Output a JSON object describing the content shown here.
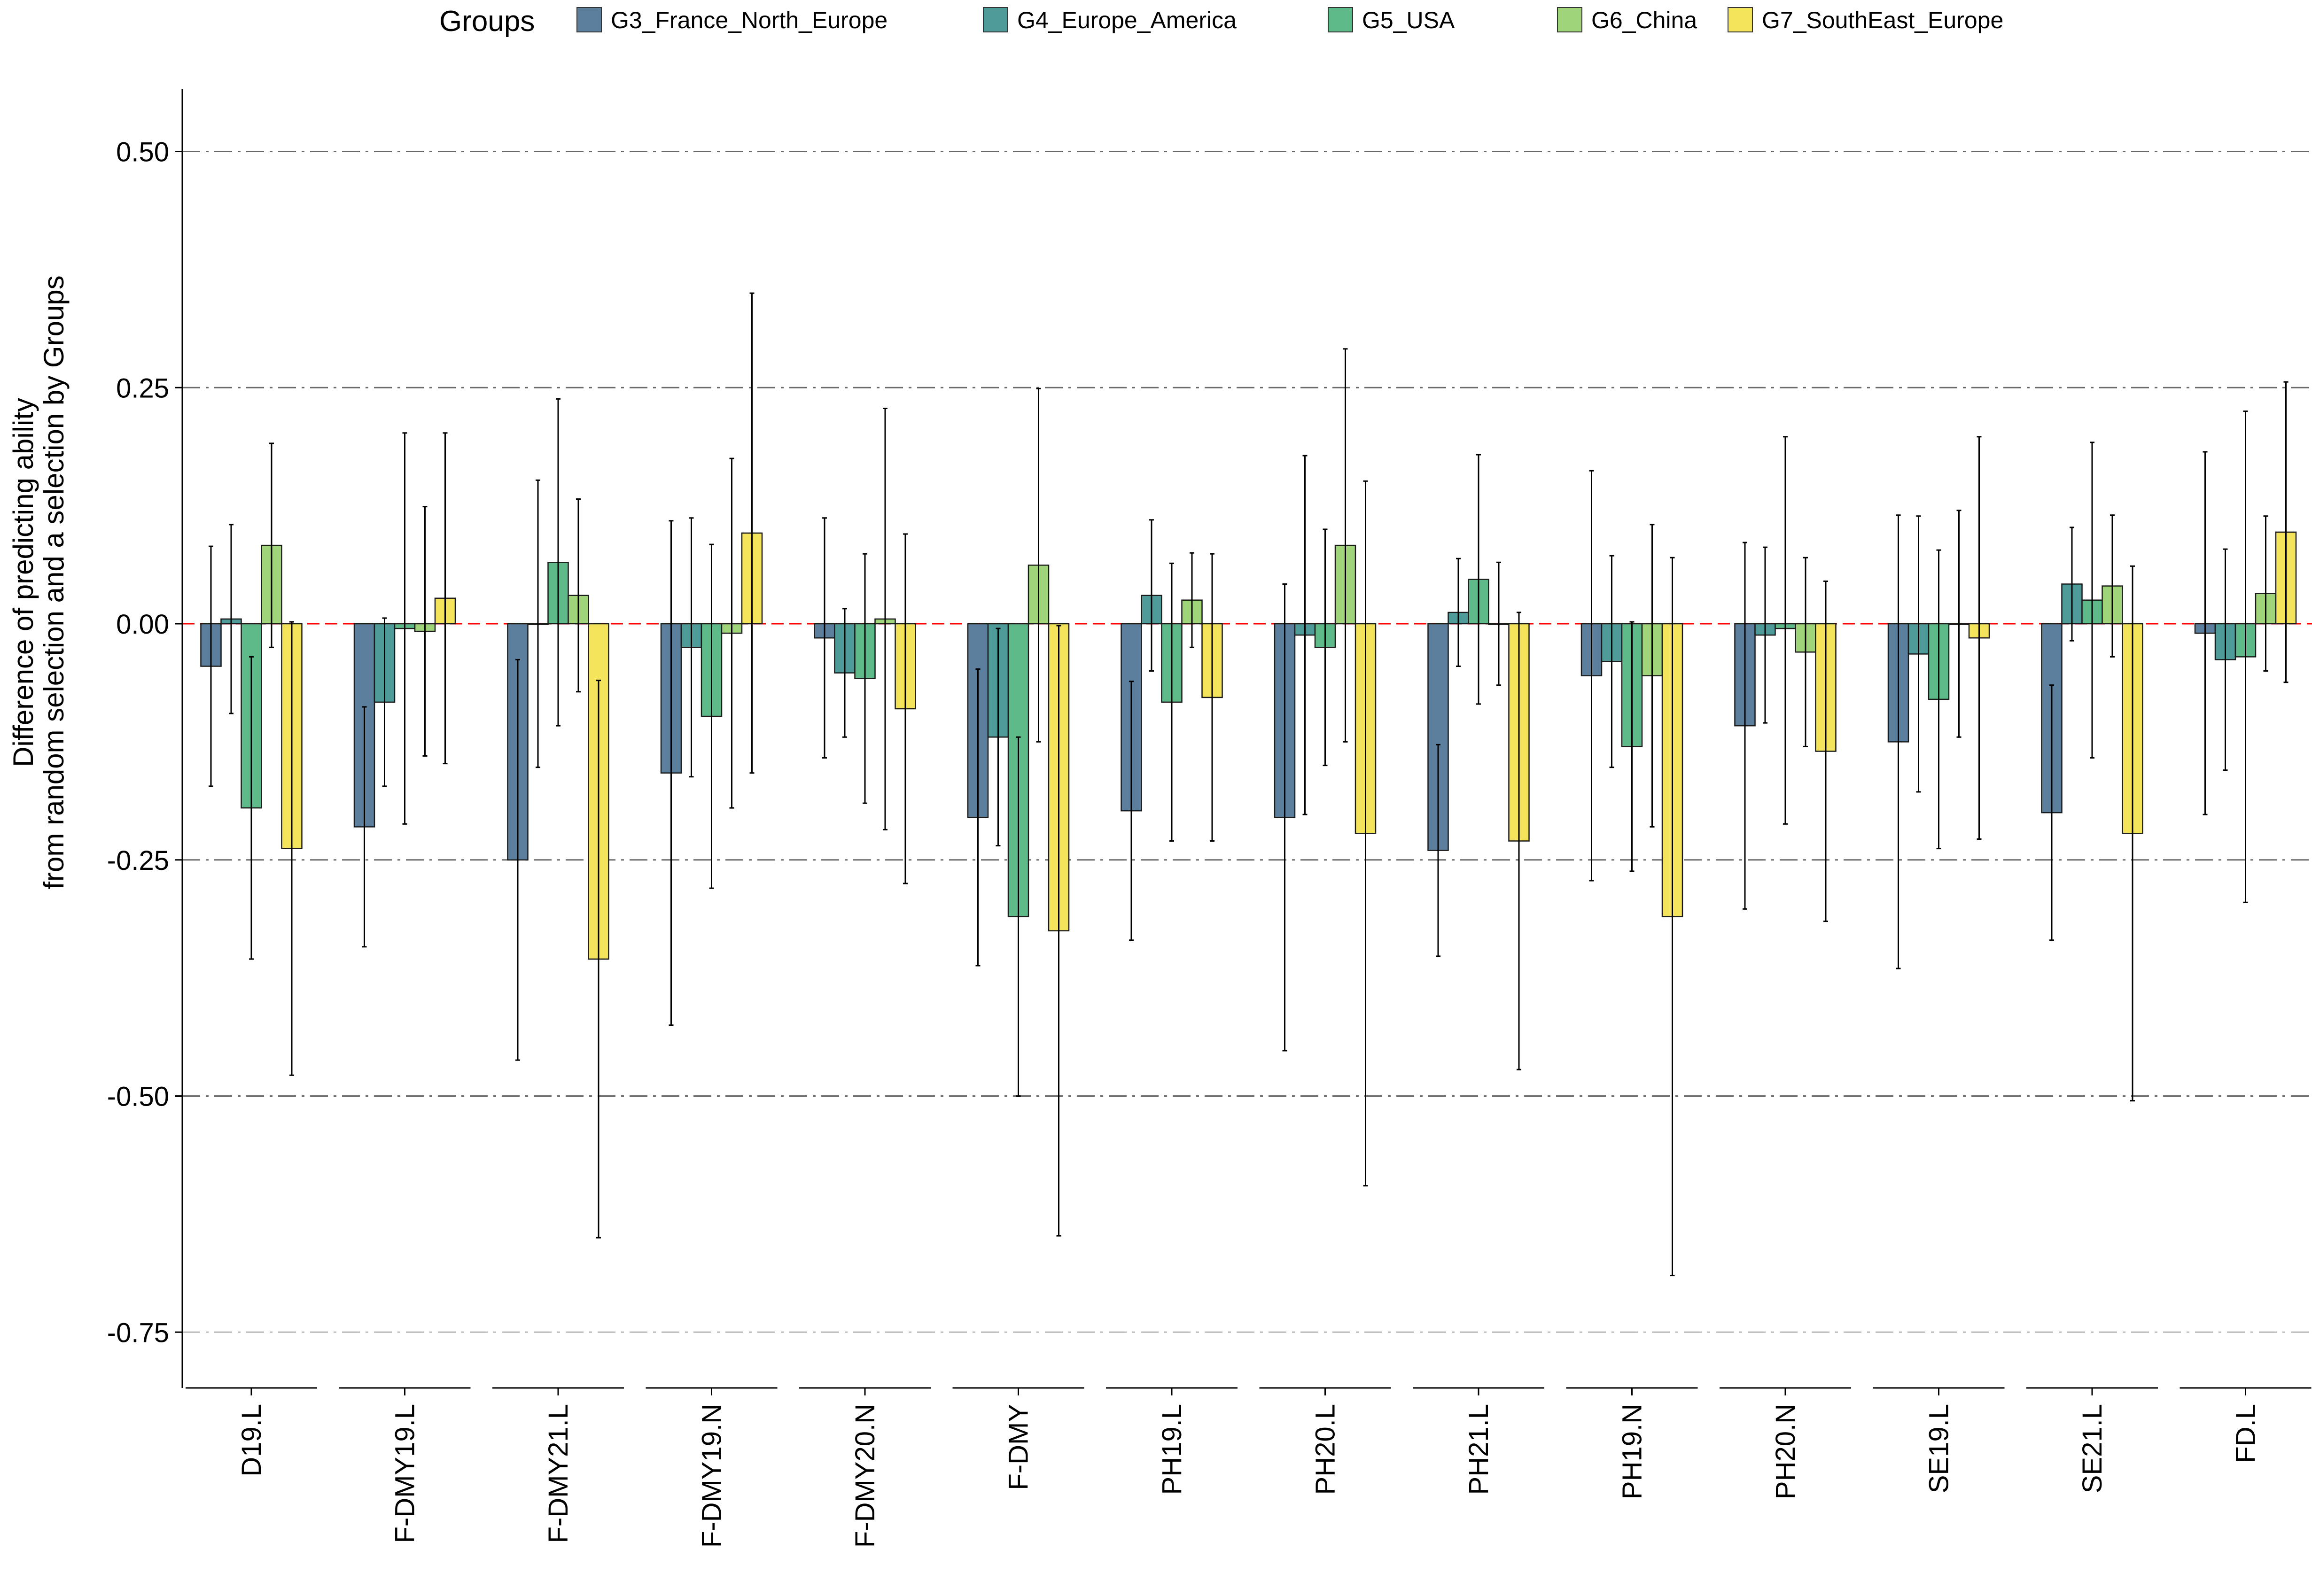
{
  "chart_data": {
    "type": "bar",
    "ylabel": "Difference of predicting ability\nfrom random selection and a selection by Groups",
    "xlabel": "",
    "ylim": [
      -0.81,
      0.56
    ],
    "yticks": [
      0.5,
      0.25,
      0.0,
      -0.25,
      -0.5,
      -0.75
    ],
    "ytick_labels": [
      "0.50",
      "0.25",
      "0.00",
      "-0.25",
      "-0.50",
      "-0.75"
    ],
    "grid": "dash-dot horizontal at y ticks; zero line red dashed",
    "legend": {
      "title": "Groups",
      "position": "top",
      "entries": [
        "G3_France_North_Europe",
        "G4_Europe_America",
        "G5_USA",
        "G6_China",
        "G7_SouthEast_Europe"
      ]
    },
    "colors": [
      "#5b7f9c",
      "#4f9b9a",
      "#5fba8a",
      "#9fd47a",
      "#f4e45c"
    ],
    "zero_line_color": "#ff0000",
    "categories": [
      "D19.L",
      "F-DMY19.L",
      "F-DMY21.L",
      "F-DMY19.N",
      "F-DMY20.N",
      "F-DMY",
      "PH19.L",
      "PH20.L",
      "PH21.L",
      "PH19.N",
      "PH20.N",
      "SE19.L",
      "SE21.L",
      "FD.L"
    ],
    "series": [
      {
        "name": "G3_France_North_Europe",
        "values": [
          -0.045,
          -0.215,
          -0.25,
          -0.158,
          -0.015,
          -0.205,
          -0.198,
          -0.205,
          -0.24,
          -0.055,
          -0.108,
          -0.125,
          -0.2,
          -0.01
        ],
        "error_low": [
          -0.172,
          -0.342,
          -0.462,
          -0.425,
          -0.142,
          -0.362,
          -0.335,
          -0.452,
          -0.352,
          -0.272,
          -0.302,
          -0.365,
          -0.335,
          -0.202
        ],
        "error_high": [
          0.082,
          -0.088,
          -0.038,
          0.109,
          0.112,
          -0.048,
          -0.061,
          0.042,
          -0.128,
          0.162,
          0.086,
          0.115,
          -0.065,
          0.182
        ]
      },
      {
        "name": "G4_Europe_America",
        "values": [
          0.005,
          -0.083,
          0.0,
          -0.025,
          -0.052,
          -0.12,
          0.03,
          -0.012,
          0.012,
          -0.04,
          -0.012,
          -0.032,
          0.042,
          -0.038
        ],
        "error_low": [
          -0.095,
          -0.172,
          -0.152,
          -0.162,
          -0.12,
          -0.235,
          -0.05,
          -0.202,
          -0.045,
          -0.152,
          -0.105,
          -0.178,
          -0.018,
          -0.155
        ],
        "error_high": [
          0.105,
          0.006,
          0.152,
          0.112,
          0.016,
          -0.005,
          0.11,
          0.178,
          0.069,
          0.072,
          0.081,
          0.114,
          0.102,
          0.079
        ]
      },
      {
        "name": "G5_USA",
        "values": [
          -0.195,
          -0.005,
          0.065,
          -0.098,
          -0.058,
          -0.31,
          -0.083,
          -0.025,
          0.047,
          -0.13,
          -0.005,
          -0.08,
          0.025,
          -0.035
        ],
        "error_low": [
          -0.355,
          -0.212,
          -0.108,
          -0.28,
          -0.19,
          -0.5,
          -0.23,
          -0.15,
          -0.085,
          -0.262,
          -0.212,
          -0.238,
          -0.142,
          -0.295
        ],
        "error_high": [
          -0.035,
          0.202,
          0.238,
          0.084,
          0.074,
          -0.12,
          0.064,
          0.1,
          0.179,
          0.002,
          0.198,
          0.078,
          0.192,
          0.225
        ]
      },
      {
        "name": "G6_China",
        "values": [
          0.083,
          -0.008,
          0.03,
          -0.01,
          0.005,
          0.062,
          0.025,
          0.083,
          0.0,
          -0.055,
          -0.03,
          0.0,
          0.04,
          0.032
        ],
        "error_low": [
          -0.025,
          -0.14,
          -0.072,
          -0.195,
          -0.218,
          -0.125,
          -0.025,
          -0.125,
          -0.065,
          -0.215,
          -0.13,
          -0.12,
          -0.035,
          -0.05
        ],
        "error_high": [
          0.191,
          0.124,
          0.132,
          0.175,
          0.228,
          0.249,
          0.075,
          0.291,
          0.065,
          0.105,
          0.07,
          0.12,
          0.115,
          0.114
        ]
      },
      {
        "name": "G7_SouthEast_Europe",
        "values": [
          -0.238,
          0.027,
          -0.355,
          0.096,
          -0.09,
          -0.325,
          -0.078,
          -0.222,
          -0.23,
          -0.31,
          -0.135,
          -0.015,
          -0.222,
          0.097
        ],
        "error_low": [
          -0.478,
          -0.148,
          -0.65,
          -0.158,
          -0.275,
          -0.648,
          -0.23,
          -0.595,
          -0.472,
          -0.69,
          -0.315,
          -0.228,
          -0.505,
          -0.062
        ],
        "error_high": [
          0.002,
          0.202,
          -0.06,
          0.35,
          0.095,
          -0.002,
          0.074,
          0.151,
          0.012,
          0.07,
          0.045,
          0.198,
          0.061,
          0.256
        ]
      }
    ]
  }
}
